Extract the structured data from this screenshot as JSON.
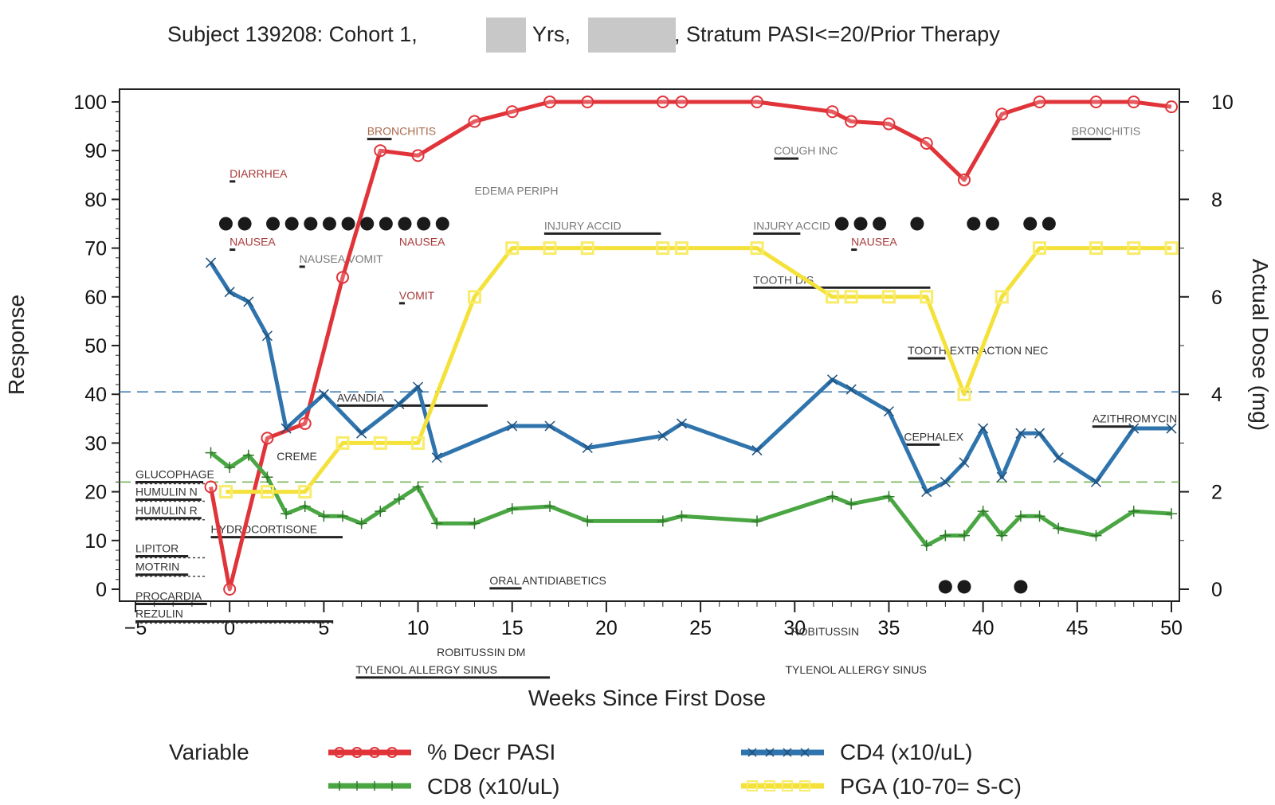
{
  "chart_data": {
    "type": "line",
    "title_parts": [
      "Subject 139208: Cohort 1,",
      "Yrs,",
      ", Stratum PASI<=20/Prior Therapy"
    ],
    "xlabel": "Weeks Since First Dose",
    "ylabel": "Response",
    "y2label": "Actual Dose (mg)",
    "xlim": [
      -5,
      50
    ],
    "ylim": [
      0,
      100
    ],
    "y2lim": [
      0,
      10
    ],
    "x_ticks": [
      "-5",
      "0",
      "5",
      "10",
      "15",
      "20",
      "25",
      "30",
      "35",
      "40",
      "45",
      "50"
    ],
    "y_ticks": [
      "0",
      "10",
      "20",
      "30",
      "40",
      "50",
      "60",
      "70",
      "80",
      "90",
      "100"
    ],
    "y2_ticks": [
      "0",
      "2",
      "4",
      "6",
      "8",
      "10"
    ],
    "ref_lines": [
      {
        "y": 40.5,
        "color": "#3a78b0"
      },
      {
        "y": 22,
        "color": "#6bb04a"
      }
    ],
    "legend": {
      "title": "Variable",
      "placement": "bottom"
    },
    "series": [
      {
        "name": "% Decr PASI",
        "color": "#e0343a",
        "marker": "circle",
        "x": [
          -1,
          0,
          2,
          4,
          6,
          8,
          10,
          13,
          15,
          17,
          19,
          23,
          24,
          28,
          32,
          33,
          35,
          37,
          39,
          41,
          43,
          46,
          48,
          50
        ],
        "y": [
          21,
          0,
          31,
          34,
          64,
          90,
          89,
          96,
          98,
          100,
          100,
          100,
          100,
          100,
          98,
          96,
          95.5,
          91.5,
          84,
          97.5,
          100,
          100,
          100,
          99
        ]
      },
      {
        "name": "CD4 (x10/uL)",
        "color": "#2f74ad",
        "marker": "x",
        "x": [
          -1,
          0,
          1,
          2,
          3,
          5,
          7,
          9,
          10,
          11,
          15,
          17,
          19,
          23,
          24,
          28,
          32,
          33,
          35,
          37,
          38,
          39,
          40,
          41,
          42,
          43,
          44,
          46,
          48,
          50
        ],
        "y": [
          67,
          61,
          59,
          52,
          33,
          40,
          32,
          38,
          41.5,
          27,
          33.5,
          33.5,
          29,
          31.5,
          34,
          28.5,
          43,
          41,
          36.5,
          20,
          22,
          26,
          33,
          23,
          32,
          32,
          27,
          22,
          33,
          33
        ]
      },
      {
        "name": "CD8 (x10/uL)",
        "color": "#4aa643",
        "marker": "plus",
        "x": [
          -1,
          0,
          1,
          2,
          3,
          4,
          5,
          6,
          7,
          8,
          9,
          10,
          11,
          13,
          15,
          17,
          19,
          23,
          24,
          28,
          32,
          33,
          35,
          37,
          38,
          39,
          40,
          41,
          42,
          43,
          44,
          46,
          48,
          50
        ],
        "y": [
          28,
          25,
          27.5,
          23,
          15.5,
          17,
          15,
          15,
          13.5,
          16,
          18.5,
          21,
          13.5,
          13.5,
          16.5,
          17,
          14,
          14,
          15,
          14,
          19,
          17.5,
          19,
          9,
          11,
          11,
          16,
          11,
          15,
          15,
          12.5,
          11,
          16,
          15.5
        ]
      },
      {
        "name": "PGA (10-70= S-C)",
        "color": "#f4e13a",
        "marker": "square",
        "x": [
          -0.2,
          2,
          4,
          6,
          8,
          10,
          13,
          15,
          17,
          19,
          23,
          24,
          28,
          32,
          33,
          35,
          37,
          39,
          41,
          43,
          46,
          48,
          50
        ],
        "y": [
          20,
          20,
          20,
          30,
          30,
          30,
          60,
          70,
          70,
          70,
          70,
          70,
          70,
          60,
          60,
          60,
          60,
          40,
          60,
          70,
          70,
          70,
          70
        ]
      }
    ],
    "dose_dots": [
      {
        "y": 75,
        "x": [
          -0.2,
          0.8,
          2.3,
          3.3,
          4.3,
          5.3,
          6.3,
          7.3,
          8.3,
          9.3,
          10.3,
          11.3,
          32.5,
          33.5,
          34.5,
          36.5,
          39.5,
          40.5,
          42.5,
          43.5
        ]
      },
      {
        "y": 0.5,
        "x": [
          38,
          39,
          42
        ]
      }
    ],
    "annotations": [
      {
        "text": "BRONCHITIS",
        "x": 7.3,
        "y": 93.2,
        "color": "#a86a4a",
        "bar": [
          7.3,
          8.6
        ]
      },
      {
        "text": "DIARRHEA",
        "x": 0,
        "y": 84.5,
        "color": "#a83a3a",
        "bar": [
          0,
          0.3
        ]
      },
      {
        "text": "EDEMA PERIPH",
        "x": 13,
        "y": 81,
        "color": "#7a7a7a",
        "bar": null
      },
      {
        "text": "COUGH INC",
        "x": 28.9,
        "y": 89.2,
        "color": "#7a7a7a",
        "bar": [
          28.9,
          30.2
        ]
      },
      {
        "text": "BRONCHITIS",
        "x": 44.7,
        "y": 93.2,
        "color": "#7a7a7a",
        "bar": [
          44.7,
          46.8
        ]
      },
      {
        "text": "INJURY ACCID",
        "x": 16.7,
        "y": 73.8,
        "color": "#7a7a7a",
        "bar": [
          16.7,
          22.9
        ]
      },
      {
        "text": "INJURY ACCID",
        "x": 27.8,
        "y": 73.8,
        "color": "#7a7a7a",
        "bar": [
          27.8,
          30.3
        ]
      },
      {
        "text": "NAUSEA",
        "x": 0,
        "y": 70.5,
        "color": "#a83a3a",
        "bar": [
          0,
          0.3
        ]
      },
      {
        "text": "NAUSEA",
        "x": 9,
        "y": 70.5,
        "color": "#a83a3a",
        "bar": null
      },
      {
        "text": "NAUSEA",
        "x": 33,
        "y": 70.5,
        "color": "#a83a3a",
        "bar": [
          33,
          33.3
        ]
      },
      {
        "text": "NAUSEA VOMIT",
        "x": 3.7,
        "y": 67,
        "color": "#7a7a7a",
        "bar": [
          3.7,
          4
        ]
      },
      {
        "text": "VOMIT",
        "x": 9,
        "y": 59.5,
        "color": "#a83a3a",
        "bar": [
          9,
          9.3
        ]
      },
      {
        "text": "TOOTH DIS",
        "x": 27.8,
        "y": 62.7,
        "color": "#555555",
        "bar": [
          27.8,
          37.2
        ]
      },
      {
        "text": "TOOTH EXTRACTION NEC",
        "x": 36,
        "y": 48.2,
        "color": "#333333",
        "bar": [
          36,
          38
        ]
      },
      {
        "text": "AVANDIA",
        "x": 5.7,
        "y": 38.5,
        "color": "#333333",
        "bar": [
          5.7,
          13.7
        ]
      },
      {
        "text": "AZITHROMYCIN",
        "x": 45.8,
        "y": 34.2,
        "color": "#333333",
        "bar": [
          45.8,
          48
        ]
      },
      {
        "text": "CEPHALEX",
        "x": 35.8,
        "y": 30.5,
        "color": "#333333",
        "bar": [
          35.8,
          37.7
        ]
      },
      {
        "text": "CREME",
        "x": 2.5,
        "y": 26.5,
        "color": "#333333",
        "bar": null
      },
      {
        "text": "GLUCOPHAGE",
        "x": -5,
        "y": 22.8,
        "color": "#333333",
        "bar": [
          -5,
          -1.4
        ]
      },
      {
        "text": "HUMULIN N",
        "x": -5,
        "y": 19.2,
        "color": "#333333",
        "bar": [
          -5,
          -1.5
        ]
      },
      {
        "text": "HUMULIN R",
        "x": -5,
        "y": 15.4,
        "color": "#333333",
        "bar": [
          -5,
          -1.5
        ]
      },
      {
        "text": "HYDROCORTISONE",
        "x": -1,
        "y": 11.5,
        "color": "#333333",
        "bar": [
          -1,
          6
        ]
      },
      {
        "text": "LIPITOR",
        "x": -5,
        "y": 7.6,
        "color": "#333333",
        "bar": [
          -5,
          -2.2
        ]
      },
      {
        "text": "MOTRIN",
        "x": -5,
        "y": 3.8,
        "color": "#333333",
        "bar": [
          -5,
          -2.2
        ]
      },
      {
        "text": "ORAL ANTIDIABETICS",
        "x": 13.8,
        "y": 1,
        "color": "#333333",
        "bar": [
          13.8,
          15.5
        ]
      },
      {
        "text": "PROCARDIA",
        "x": -5,
        "y": -2.2,
        "color": "#333333",
        "bar": [
          -5,
          -1.2
        ]
      },
      {
        "text": "REZULIN",
        "x": -5,
        "y": -5.8,
        "color": "#333333",
        "bar": [
          -5,
          5.5
        ]
      },
      {
        "text": "ROBITUSSIN DM",
        "x": 11,
        "y": -13.7,
        "color": "#333333",
        "bar": null
      },
      {
        "text": "ROBITUSSIN",
        "x": 29.8,
        "y": -9.5,
        "color": "#333333",
        "bar": null
      },
      {
        "text": "TYLENOL ALLERGY SINUS",
        "x": 6.7,
        "y": -17.3,
        "color": "#333333",
        "bar": [
          6.7,
          17
        ]
      },
      {
        "text": "TYLENOL ALLERGY SINUS",
        "x": 29.5,
        "y": -17.3,
        "color": "#333333",
        "bar": null
      }
    ]
  }
}
